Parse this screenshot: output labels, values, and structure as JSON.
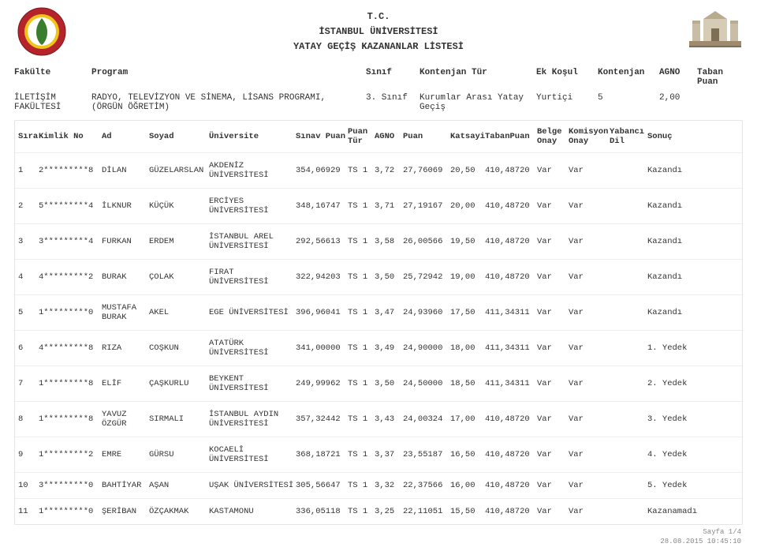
{
  "header": {
    "tc": "T.C.",
    "university": "İSTANBUL ÜNİVERSİTESİ",
    "title": "YATAY GEÇİŞ KAZANANLAR LİSTESİ"
  },
  "info_labels": {
    "fakulte": "Fakülte",
    "program": "Program",
    "sinif": "Sınıf",
    "kontenjan_tur": "Kontenjan Tür",
    "ek_kosul": "Ek Koşul",
    "kontenjan": "Kontenjan",
    "agno": "AGNO",
    "taban_puan": "Taban Puan"
  },
  "info_values": {
    "fakulte": "İLETİŞİM FAKÜLTESİ",
    "program": "RADYO, TELEVİZYON VE SİNEMA, LİSANS PROGRAMI, (ÖRGÜN ÖĞRETİM)",
    "sinif": "3. Sınıf",
    "kontenjan_tur": "Kurumlar Arası Yatay Geçiş",
    "ek_kosul": "Yurtiçi",
    "kontenjan": "5",
    "agno": "2,00",
    "taban_puan": ""
  },
  "columns": {
    "sira": "Sıra",
    "kimlik": "Kimlik No",
    "ad": "Ad",
    "soyad": "Soyad",
    "universite": "Üniversite",
    "sinav_puan": "Sınav Puan",
    "puan_tur": "Puan Tür",
    "agno": "AGNO",
    "puan": "Puan",
    "katsayi": "Katsayi",
    "taban_puan": "TabanPuan",
    "belge_onay": "Belge Onay",
    "komisyon_onay": "Komisyon Onay",
    "yabanci_dil": "Yabancı Dil",
    "sonuc": "Sonuç"
  },
  "rows": [
    {
      "sira": "1",
      "kimlik": "2*********8",
      "ad": "DİLAN",
      "soyad": "GÜZELARSLAN",
      "univ": "AKDENİZ ÜNİVERSİTESİ",
      "sinav": "354,06929",
      "ptur": "TS 1",
      "agno": "3,72",
      "puan": "27,76069",
      "katsayi": "20,50",
      "tabanp": "410,48720",
      "belge": "Var",
      "komisy": "Var",
      "yabanci": "",
      "sonuc": "Kazandı"
    },
    {
      "sira": "2",
      "kimlik": "5*********4",
      "ad": "İLKNUR",
      "soyad": "KÜÇÜK",
      "univ": "ERCİYES ÜNİVERSİTESİ",
      "sinav": "348,16747",
      "ptur": "TS 1",
      "agno": "3,71",
      "puan": "27,19167",
      "katsayi": "20,00",
      "tabanp": "410,48720",
      "belge": "Var",
      "komisy": "Var",
      "yabanci": "",
      "sonuc": "Kazandı"
    },
    {
      "sira": "3",
      "kimlik": "3*********4",
      "ad": "FURKAN",
      "soyad": "ERDEM",
      "univ": "İSTANBUL AREL ÜNİVERSİTESİ",
      "sinav": "292,56613",
      "ptur": "TS 1",
      "agno": "3,58",
      "puan": "26,00566",
      "katsayi": "19,50",
      "tabanp": "410,48720",
      "belge": "Var",
      "komisy": "Var",
      "yabanci": "",
      "sonuc": "Kazandı"
    },
    {
      "sira": "4",
      "kimlik": "4*********2",
      "ad": "BURAK",
      "soyad": "ÇOLAK",
      "univ": "FIRAT ÜNİVERSİTESİ",
      "sinav": "322,94203",
      "ptur": "TS 1",
      "agno": "3,50",
      "puan": "25,72942",
      "katsayi": "19,00",
      "tabanp": "410,48720",
      "belge": "Var",
      "komisy": "Var",
      "yabanci": "",
      "sonuc": "Kazandı"
    },
    {
      "sira": "5",
      "kimlik": "1*********0",
      "ad": "MUSTAFA BURAK",
      "soyad": "AKEL",
      "univ": "EGE ÜNİVERSİTESİ",
      "sinav": "396,96041",
      "ptur": "TS 1",
      "agno": "3,47",
      "puan": "24,93960",
      "katsayi": "17,50",
      "tabanp": "411,34311",
      "belge": "Var",
      "komisy": "Var",
      "yabanci": "",
      "sonuc": "Kazandı"
    },
    {
      "sira": "6",
      "kimlik": "4*********8",
      "ad": "RIZA",
      "soyad": "COŞKUN",
      "univ": "ATATÜRK ÜNİVERSİTESİ",
      "sinav": "341,00000",
      "ptur": "TS 1",
      "agno": "3,49",
      "puan": "24,90000",
      "katsayi": "18,00",
      "tabanp": "411,34311",
      "belge": "Var",
      "komisy": "Var",
      "yabanci": "",
      "sonuc": "1. Yedek"
    },
    {
      "sira": "7",
      "kimlik": "1*********8",
      "ad": "ELİF",
      "soyad": "ÇAŞKURLU",
      "univ": "BEYKENT ÜNİVERSİTESİ",
      "sinav": "249,99962",
      "ptur": "TS 1",
      "agno": "3,50",
      "puan": "24,50000",
      "katsayi": "18,50",
      "tabanp": "411,34311",
      "belge": "Var",
      "komisy": "Var",
      "yabanci": "",
      "sonuc": "2. Yedek"
    },
    {
      "sira": "8",
      "kimlik": "1*********8",
      "ad": "YAVUZ ÖZGÜR",
      "soyad": "SIRMALI",
      "univ": "İSTANBUL AYDIN ÜNİVERSİTESİ",
      "sinav": "357,32442",
      "ptur": "TS 1",
      "agno": "3,43",
      "puan": "24,00324",
      "katsayi": "17,00",
      "tabanp": "410,48720",
      "belge": "Var",
      "komisy": "Var",
      "yabanci": "",
      "sonuc": "3. Yedek"
    },
    {
      "sira": "9",
      "kimlik": "1*********2",
      "ad": "EMRE",
      "soyad": "GÜRSU",
      "univ": "KOCAELİ ÜNİVERSİTESİ",
      "sinav": "368,18721",
      "ptur": "TS 1",
      "agno": "3,37",
      "puan": "23,55187",
      "katsayi": "16,50",
      "tabanp": "410,48720",
      "belge": "Var",
      "komisy": "Var",
      "yabanci": "",
      "sonuc": "4. Yedek"
    },
    {
      "sira": "10",
      "kimlik": "3*********0",
      "ad": "BAHTİYAR",
      "soyad": "AŞAN",
      "univ": "UŞAK ÜNİVERSİTESİ",
      "sinav": "305,56647",
      "ptur": "TS 1",
      "agno": "3,32",
      "puan": "22,37566",
      "katsayi": "16,00",
      "tabanp": "410,48720",
      "belge": "Var",
      "komisy": "Var",
      "yabanci": "",
      "sonuc": "5. Yedek"
    },
    {
      "sira": "11",
      "kimlik": "1*********0",
      "ad": "ŞERİBAN",
      "soyad": "ÖZÇAKMAK",
      "univ": "KASTAMONU",
      "sinav": "336,05118",
      "ptur": "TS 1",
      "agno": "3,25",
      "puan": "22,11051",
      "katsayi": "15,50",
      "tabanp": "410,48720",
      "belge": "Var",
      "komisy": "Var",
      "yabanci": "",
      "sonuc": "Kazanamadı"
    }
  ],
  "footer": {
    "page": "Sayfa 1/4",
    "timestamp": "28.08.2015 10:45:10"
  },
  "colors": {
    "text": "#333333",
    "border": "#e5e5e5",
    "row_border": "#eeeeee",
    "footer": "#888888",
    "background": "#ffffff",
    "seal_outer": "#b5232b",
    "seal_inner": "#f0c419",
    "seal_leaf": "#3a7d2f",
    "gate": "#9e8b6f"
  }
}
